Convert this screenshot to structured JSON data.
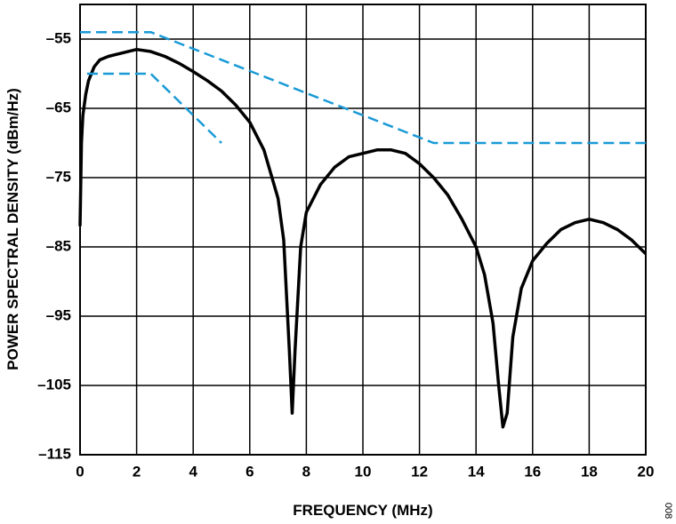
{
  "chart_data": {
    "type": "line",
    "x_label": "FREQUENCY (MHz)",
    "y_label": "POWER SPECTRAL DENSITY (dBm/Hz)",
    "annotation": "008",
    "xlim": [
      0,
      20
    ],
    "xticks": [
      0,
      2,
      4,
      6,
      8,
      10,
      12,
      14,
      16,
      18,
      20
    ],
    "ylim": [
      -115,
      -50
    ],
    "yticks": [
      {
        "value": -55,
        "label": "–55"
      },
      {
        "value": -65,
        "label": "–65"
      },
      {
        "value": -75,
        "label": "–75"
      },
      {
        "value": -85,
        "label": "–85"
      },
      {
        "value": -95,
        "label": "–95"
      },
      {
        "value": -105,
        "label": "–105"
      },
      {
        "value": -115,
        "label": "–115"
      }
    ],
    "grid": true,
    "series": [
      {
        "color": "#000000",
        "style": "solid",
        "x": [
          0,
          0.05,
          0.1,
          0.2,
          0.3,
          0.5,
          0.7,
          1,
          1.5,
          2,
          2.5,
          3,
          3.5,
          4,
          4.5,
          5,
          5.5,
          6,
          6.5,
          7,
          7.2,
          7.4,
          7.5,
          7.6,
          7.8,
          8,
          8.5,
          9,
          9.5,
          10,
          10.5,
          11,
          11.5,
          12,
          12.5,
          13,
          13.5,
          14,
          14.3,
          14.6,
          14.8,
          14.95,
          15.1,
          15.3,
          15.6,
          16,
          16.5,
          17,
          17.5,
          18,
          18.5,
          19,
          19.5,
          20
        ],
        "values": [
          -82,
          -70,
          -66,
          -63,
          -61,
          -59,
          -58,
          -57.5,
          -57,
          -56.5,
          -56.8,
          -57.5,
          -58.5,
          -59.7,
          -61,
          -62.5,
          -64.5,
          -67,
          -71,
          -78,
          -84,
          -100,
          -109,
          -100,
          -85,
          -80,
          -76,
          -73.5,
          -72,
          -71.5,
          -71,
          -71,
          -71.5,
          -73,
          -75,
          -77.5,
          -81,
          -85,
          -89,
          -96,
          -105,
          -111,
          -109,
          -98,
          -91,
          -87,
          -84.5,
          -82.5,
          -81.5,
          -81,
          -81.5,
          -82.5,
          -84,
          -86
        ]
      },
      {
        "color": "#1a9ad6",
        "style": "dashed",
        "x": [
          0,
          2.5,
          12.5,
          20
        ],
        "values": [
          -54,
          -54,
          -70,
          -70
        ]
      },
      {
        "color": "#1a9ad6",
        "style": "dashed",
        "x": [
          0.25,
          2.5,
          5
        ],
        "values": [
          -60,
          -60,
          -70
        ]
      }
    ]
  }
}
